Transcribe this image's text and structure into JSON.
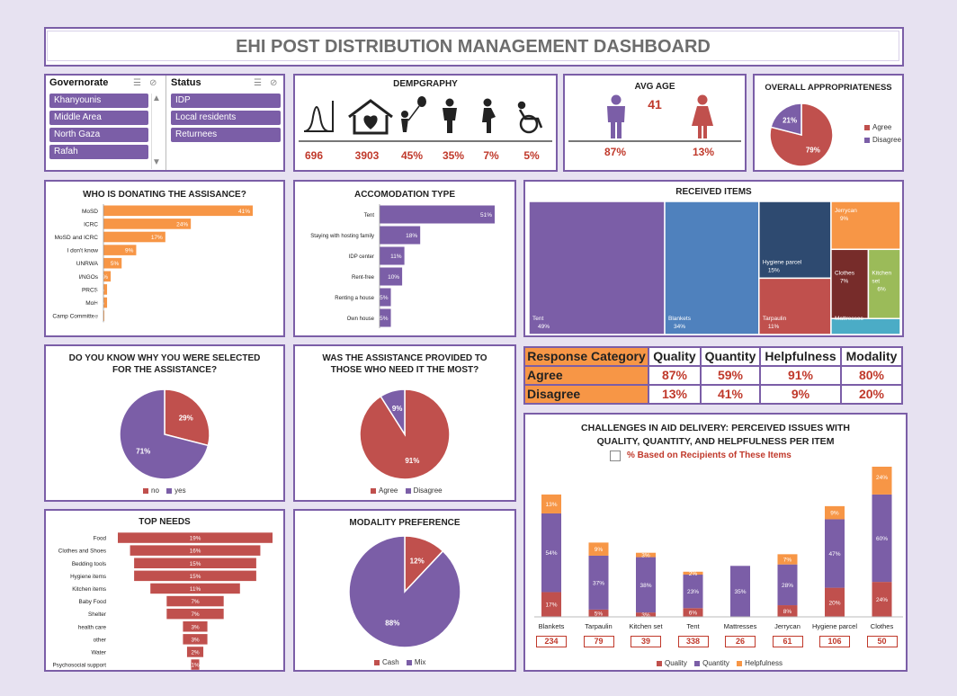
{
  "title": "EHI POST DISTRIBUTION MANAGEMENT DASHBOARD",
  "colors": {
    "purple": "#7b5ea7",
    "red": "#c0504d",
    "orange": "#f79646",
    "blue": "#4f81bd",
    "navy": "#2e4a70",
    "maroon": "#772c2a",
    "green": "#9bbb59",
    "cyan": "#4bacc6"
  },
  "slicers": {
    "governorate": {
      "title": "Governorate",
      "items": [
        "Khanyounis",
        "Middle Area",
        "North Gaza",
        "Rafah"
      ]
    },
    "status": {
      "title": "Status",
      "items": [
        "IDP",
        "Local residents",
        "Returnees"
      ]
    }
  },
  "demography": {
    "title": "DEMPGRAPHY",
    "items": [
      {
        "icon": "bell-curve-icon",
        "value": "696"
      },
      {
        "icon": "house-heart-icon",
        "value": "3903"
      },
      {
        "icon": "child-balloon-icon",
        "value": "45%"
      },
      {
        "icon": "male-icon",
        "value": "35%"
      },
      {
        "icon": "pregnant-woman-icon",
        "value": "7%"
      },
      {
        "icon": "wheelchair-icon",
        "value": "5%"
      }
    ]
  },
  "avg_age": {
    "title": "AVG AGE",
    "value": "41",
    "male_pct": "87%",
    "female_pct": "13%"
  },
  "chart_data": [
    {
      "id": "appropriateness",
      "type": "pie",
      "title": "OVERALL APPROPRIATENESS",
      "labels": [
        "Agree",
        "Disagree"
      ],
      "values": [
        79,
        21
      ],
      "data_labels": [
        "79%",
        "21%"
      ],
      "legend": "right"
    },
    {
      "id": "donors",
      "type": "bar",
      "orientation": "horizontal",
      "title": "WHO IS DONATING THE ASSISANCE?",
      "categories": [
        "MoSD",
        "ICRC",
        "MoSD and ICRC",
        "I don't know",
        "UNRWA",
        "I/NGOs",
        "PRCS",
        "MoH",
        "Camp Committee"
      ],
      "values": [
        41,
        24,
        17,
        9,
        5,
        2,
        1,
        1,
        0
      ],
      "data_labels": [
        "41%",
        "24%",
        "17%",
        "9%",
        "5%",
        "2%",
        "1%",
        "1%",
        "0%"
      ]
    },
    {
      "id": "accommodation",
      "type": "bar",
      "orientation": "horizontal",
      "title": "ACCOMODATION TYPE",
      "categories": [
        "Tent",
        "Staying with hosting family",
        "IDP center",
        "Rent-free",
        "Renting a house",
        "Own house"
      ],
      "values": [
        51,
        18,
        11,
        10,
        5,
        5
      ],
      "data_labels": [
        "51%",
        "18%",
        "11%",
        "10%",
        "5%",
        "5%"
      ]
    },
    {
      "id": "received",
      "type": "treemap",
      "title": "RECEIVED ITEMS",
      "labels": [
        "Tent",
        "Blankets",
        "Hygiene parcel",
        "Tarpaulin",
        "Jerrycan",
        "Clothes",
        "Kitchen set",
        "Mattresses"
      ],
      "values": [
        49,
        34,
        15,
        11,
        9,
        7,
        6,
        3
      ],
      "data_labels": [
        "49%",
        "34%",
        "15%",
        "11%",
        "9%",
        "7%",
        "6%",
        ""
      ]
    },
    {
      "id": "selected",
      "type": "pie",
      "title": [
        "DO YOU KNOW WHY YOU WERE SELECTED",
        "FOR THE ASSISTANCE?"
      ],
      "labels": [
        "no",
        "yes"
      ],
      "values": [
        29,
        71
      ],
      "data_labels": [
        "29%",
        "71%"
      ],
      "legend": "bottom"
    },
    {
      "id": "needy",
      "type": "pie",
      "title": [
        "WAS THE ASSISTANCE PROVIDED TO",
        "THOSE WHO NEED IT THE MOST?"
      ],
      "labels": [
        "Agree",
        "Disagree"
      ],
      "values": [
        91,
        9
      ],
      "data_labels": [
        "91%",
        "9%"
      ],
      "legend": "bottom"
    },
    {
      "id": "needs",
      "type": "bar",
      "orientation": "funnel",
      "title": "TOP NEEDS",
      "categories": [
        "Food",
        "Clothes and Shoes",
        "Bedding tools",
        "Hygiene items",
        "Kitchen items",
        "Baby Food",
        "Shelter",
        "health care",
        "other",
        "Water",
        "Psychosocial support"
      ],
      "values": [
        19,
        16,
        15,
        15,
        11,
        7,
        7,
        3,
        3,
        2,
        1
      ],
      "data_labels": [
        "19%",
        "16%",
        "15%",
        "15%",
        "11%",
        "7%",
        "7%",
        "3%",
        "3%",
        "2%",
        "1%"
      ]
    },
    {
      "id": "modality",
      "type": "pie",
      "title": "MODALITY PREFERENCE",
      "labels": [
        "Cash",
        "Mix"
      ],
      "values": [
        12,
        88
      ],
      "data_labels": [
        "12%",
        "88%"
      ],
      "legend": "bottom"
    },
    {
      "id": "challenges",
      "type": "bar",
      "orientation": "stacked",
      "title": [
        "CHALLENGES IN AID DELIVERY: PERCEIVED ISSUES WITH",
        "QUALITY, QUANTITY, AND HELPFULNESS PER ITEM"
      ],
      "subtitle": "% Based on Recipients of These Items",
      "categories": [
        "Blankets",
        "Tarpaulin",
        "Kitchen set",
        "Tent",
        "Mattresses",
        "Jerrycan",
        "Hygiene parcel",
        "Clothes"
      ],
      "counts": [
        "234",
        "79",
        "39",
        "338",
        "26",
        "61",
        "106",
        "50"
      ],
      "series": [
        {
          "name": "Quality",
          "values": [
            17,
            5,
            3,
            6,
            0,
            8,
            20,
            24
          ],
          "data_labels": [
            "17%",
            "5%",
            "3%",
            "6%",
            "",
            "8%",
            "20%",
            "24%"
          ]
        },
        {
          "name": "Quantity",
          "values": [
            54,
            37,
            38,
            23,
            35,
            28,
            47,
            60
          ],
          "data_labels": [
            "54%",
            "37%",
            "38%",
            "23%",
            "35%",
            "28%",
            "47%",
            "60%"
          ]
        },
        {
          "name": "Helpfulness",
          "values": [
            13,
            9,
            3,
            2,
            0,
            7,
            9,
            24
          ],
          "data_labels": [
            "13%",
            "9%",
            "3%",
            "2%",
            "",
            "7%",
            "9%",
            "24%"
          ]
        }
      ],
      "legend": "bottom"
    }
  ],
  "response_table": {
    "headers": [
      "Response Category",
      "Quality",
      "Quantity",
      "Helpfulness",
      "Modality"
    ],
    "rows": [
      [
        "Agree",
        "87%",
        "59%",
        "91%",
        "80%"
      ],
      [
        "Disagree",
        "13%",
        "41%",
        "9%",
        "20%"
      ]
    ]
  }
}
